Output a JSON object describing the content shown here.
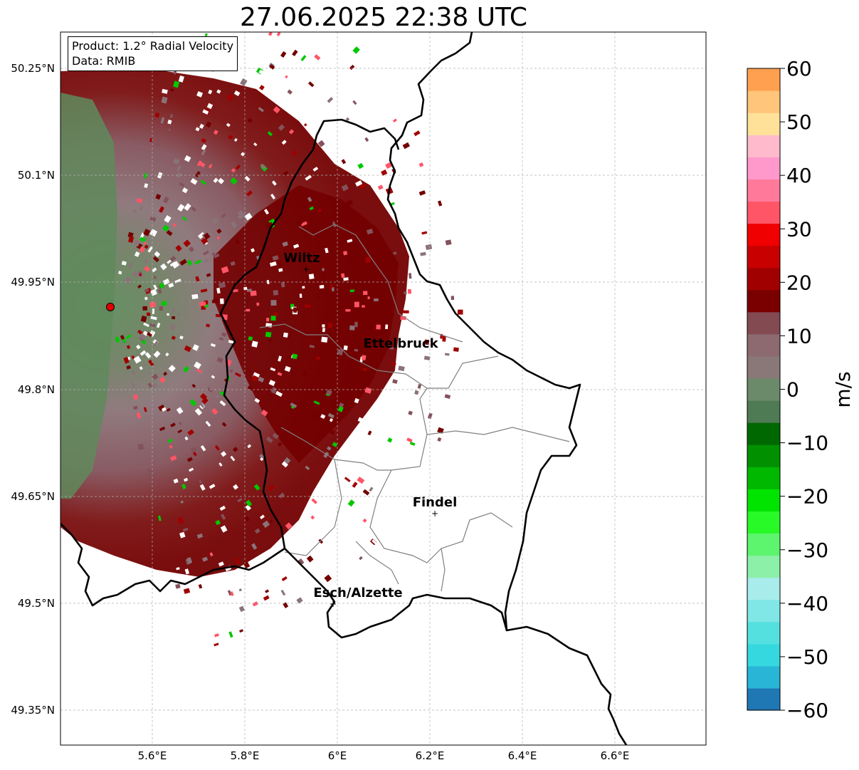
{
  "title": "27.06.2025 22:38 UTC",
  "info": {
    "product": "Product: 1.2° Radial Velocity",
    "data": "Data: RMIB"
  },
  "axes": {
    "lon_ticks": [
      "5.6°E",
      "5.8°E",
      "6°E",
      "6.2°E",
      "6.4°E",
      "6.6°E"
    ],
    "lat_ticks": [
      "50.25°N",
      "50.1°N",
      "49.95°N",
      "49.8°N",
      "49.65°N",
      "49.5°N",
      "49.35°N"
    ]
  },
  "colorbar": {
    "unit": "m/s",
    "ticks": [
      "60",
      "50",
      "40",
      "30",
      "20",
      "10",
      "0",
      "−10",
      "−20",
      "−30",
      "−40",
      "−50",
      "−60"
    ],
    "min": -60,
    "max": 60,
    "colors": [
      "#1f77b4",
      "#29b6d6",
      "#35d8de",
      "#55e0e0",
      "#80e6e6",
      "#a8ecec",
      "#8cf0a8",
      "#5df56d",
      "#28fa28",
      "#00e400",
      "#00b800",
      "#009000",
      "#006800",
      "#4e7a54",
      "#6a8a6a",
      "#8a7878",
      "#8c6a70",
      "#844a52",
      "#7a0000",
      "#a00000",
      "#c80000",
      "#f00000",
      "#ff5566",
      "#ff7a9a",
      "#ff99cc",
      "#ffbbcc",
      "#ffe19a",
      "#ffc57a",
      "#ffa050"
    ]
  },
  "places": [
    {
      "name": "Wiltz"
    },
    {
      "name": "Ettelbruck"
    },
    {
      "name": "Findel"
    },
    {
      "name": "Esch/Alzette"
    }
  ],
  "radar_site": {
    "color": "#e00000"
  }
}
